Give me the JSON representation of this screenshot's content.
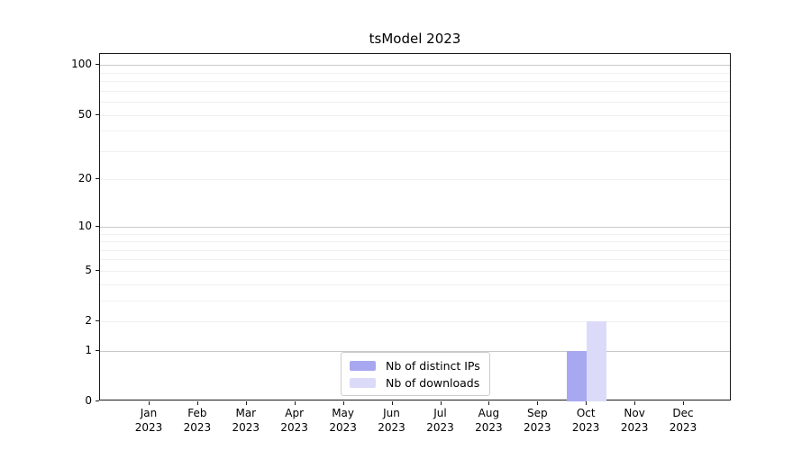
{
  "chart_data": {
    "type": "bar",
    "title": "tsModel 2023",
    "categories": [
      {
        "month": "Jan",
        "year": "2023"
      },
      {
        "month": "Feb",
        "year": "2023"
      },
      {
        "month": "Mar",
        "year": "2023"
      },
      {
        "month": "Apr",
        "year": "2023"
      },
      {
        "month": "May",
        "year": "2023"
      },
      {
        "month": "Jun",
        "year": "2023"
      },
      {
        "month": "Jul",
        "year": "2023"
      },
      {
        "month": "Aug",
        "year": "2023"
      },
      {
        "month": "Sep",
        "year": "2023"
      },
      {
        "month": "Oct",
        "year": "2023"
      },
      {
        "month": "Nov",
        "year": "2023"
      },
      {
        "month": "Dec",
        "year": "2023"
      }
    ],
    "series": [
      {
        "name": "Nb of distinct IPs",
        "color": "#a8a8f0",
        "values": [
          0,
          0,
          0,
          0,
          0,
          0,
          0,
          0,
          0,
          1,
          0,
          0
        ]
      },
      {
        "name": "Nb of downloads",
        "color": "#dbdbf9",
        "values": [
          0,
          0,
          0,
          0,
          0,
          0,
          0,
          0,
          0,
          2,
          0,
          0
        ]
      }
    ],
    "xlabel": "",
    "ylabel": "",
    "yscale": "log1p",
    "yticks": [
      {
        "label": "0",
        "value": 0
      },
      {
        "label": "1",
        "value": 1
      },
      {
        "label": "2",
        "value": 2
      },
      {
        "label": "5",
        "value": 5
      },
      {
        "label": "10",
        "value": 10
      },
      {
        "label": "20",
        "value": 20
      },
      {
        "label": "50",
        "value": 50
      },
      {
        "label": "100",
        "value": 100
      }
    ],
    "major_gridlines": [
      1,
      10,
      100
    ],
    "minor_gridlines": [
      2,
      3,
      4,
      5,
      6,
      7,
      8,
      9,
      20,
      30,
      40,
      50,
      60,
      70,
      80,
      90
    ],
    "grid": "horizontal",
    "legend_position": "bottom-center",
    "colors": {
      "major_gridline": "#c9c9c9",
      "minor_gridline": "#f0f0f0",
      "spine": "#1a1a1a",
      "legend_border": "#cccccc"
    }
  }
}
